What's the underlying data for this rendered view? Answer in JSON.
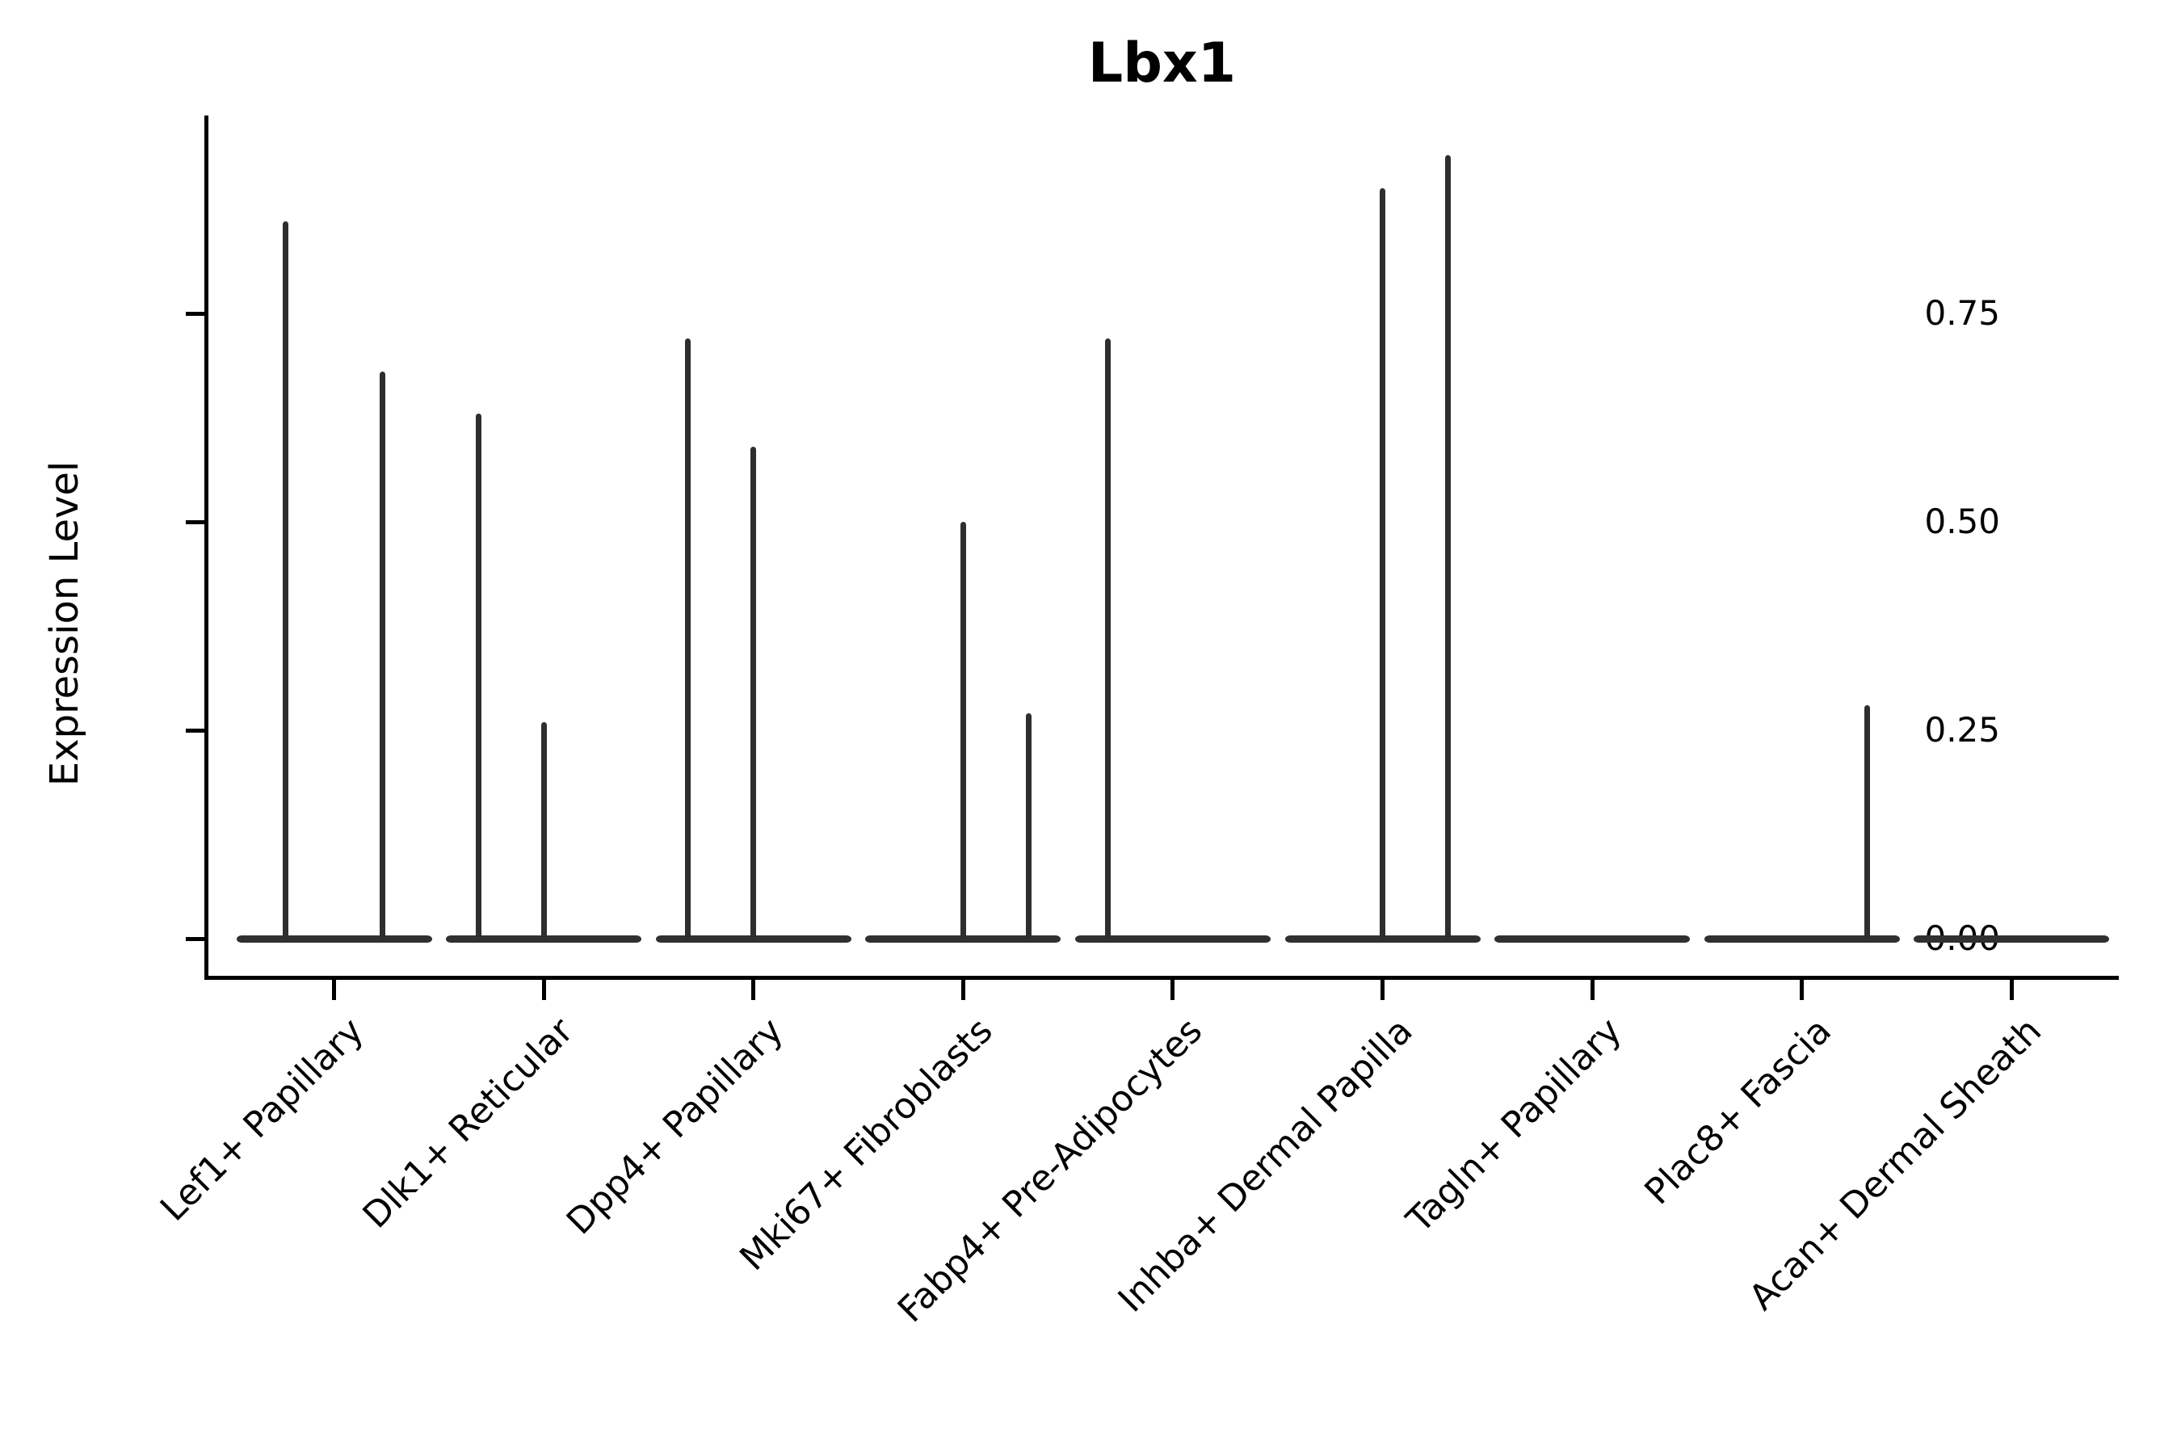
{
  "figure": {
    "background": "#ffffff",
    "axis_color": "#000000",
    "violin_color": "#303030"
  },
  "chart_data": {
    "type": "violin",
    "title": "Lbx1",
    "xlabel": "",
    "ylabel": "Expression Level",
    "ylim": [
      0,
      1.0
    ],
    "yticks": [
      0,
      0.25,
      0.5,
      0.75
    ],
    "ytick_labels": [
      "0.00",
      "0.25",
      "0.50",
      "0.75"
    ],
    "legend": "none",
    "grid": false,
    "x_tick_rotation_deg": 45,
    "categories": [
      "Lef1+ Papillary",
      "Dlk1+ Reticular",
      "Dpp4+ Papillary",
      "Mki67+ Fibroblasts",
      "Fabp4+ Pre-Adipocytes",
      "Inhba+ Dermal Papilla",
      "Tagln+ Papillary",
      "Plac8+ Fascia",
      "Acan+ Dermal Sheath"
    ],
    "description": "Violin plot of Lbx1 expression per cluster; each cluster shows a dense flat mass at expression 0 spanning the category width, with thin vertical spikes rising to the maximum expression of sub-violins that contain non-zero cells.",
    "violins": [
      {
        "category": "Lef1+ Papillary",
        "zero_mass": true,
        "spikes": [
          {
            "offset_frac": -0.233,
            "max_value": 0.86
          },
          {
            "offset_frac": 0.233,
            "max_value": 0.68
          }
        ]
      },
      {
        "category": "Dlk1+ Reticular",
        "zero_mass": true,
        "spikes": [
          {
            "offset_frac": -0.311,
            "max_value": 0.63
          },
          {
            "offset_frac": 0,
            "max_value": 0.26
          }
        ]
      },
      {
        "category": "Dpp4+ Papillary",
        "zero_mass": true,
        "spikes": [
          {
            "offset_frac": -0.311,
            "max_value": 0.72
          },
          {
            "offset_frac": 0,
            "max_value": 0.59
          }
        ]
      },
      {
        "category": "Mki67+ Fibroblasts",
        "zero_mass": true,
        "spikes": [
          {
            "offset_frac": 0,
            "max_value": 0.5
          },
          {
            "offset_frac": 0.311,
            "max_value": 0.27
          }
        ]
      },
      {
        "category": "Fabp4+ Pre-Adipocytes",
        "zero_mass": true,
        "spikes": [
          {
            "offset_frac": -0.311,
            "max_value": 0.72
          }
        ]
      },
      {
        "category": "Inhba+ Dermal Papilla",
        "zero_mass": true,
        "spikes": [
          {
            "offset_frac": 0,
            "max_value": 0.9
          },
          {
            "offset_frac": 0.311,
            "max_value": 0.94
          }
        ]
      },
      {
        "category": "Tagln+ Papillary",
        "zero_mass": true,
        "spikes": []
      },
      {
        "category": "Plac8+ Fascia",
        "zero_mass": true,
        "spikes": [
          {
            "offset_frac": 0.311,
            "max_value": 0.28
          }
        ]
      },
      {
        "category": "Acan+ Dermal Sheath",
        "zero_mass": true,
        "spikes": []
      }
    ]
  }
}
